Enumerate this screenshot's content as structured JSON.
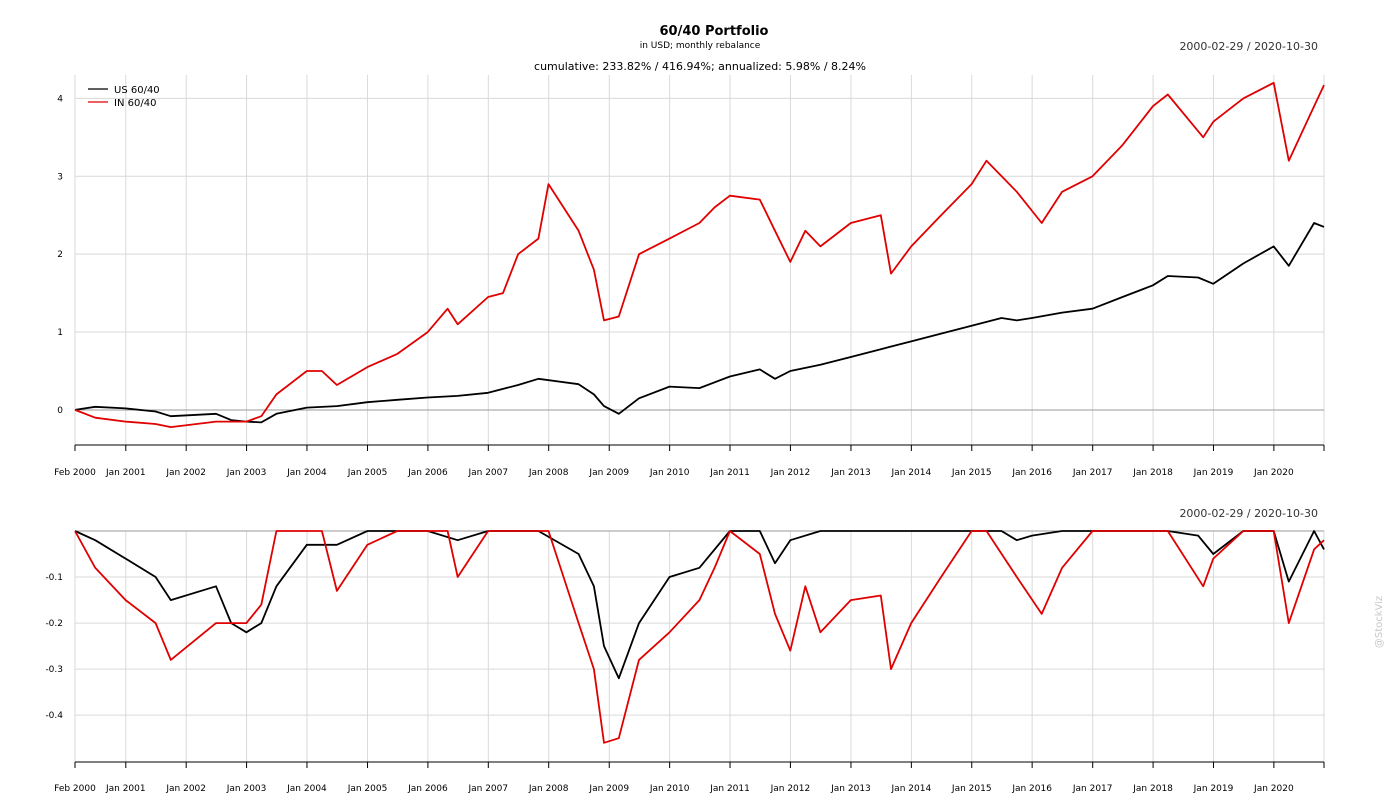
{
  "title": "60/40 Portfolio",
  "subtitle": "in USD; monthly rebalance",
  "stats": "cumulative: 233.82% / 416.94%; annualized: 5.98% / 8.24%",
  "date_range_top": "2000-02-29 / 2020-10-30",
  "date_range_bottom": "2000-02-29 / 2020-10-30",
  "watermark": "@StockViz",
  "colors": {
    "us": "#000000",
    "in": "#e00000"
  },
  "chart_data": [
    {
      "type": "line",
      "name": "cumulative returns",
      "x_range": [
        "2000-02-29",
        "2020-10-30"
      ],
      "ylim": [
        -0.45,
        4.3
      ],
      "y_ticks": [
        0,
        1,
        2,
        3,
        4
      ],
      "y_tick_labels": [
        "0",
        "1",
        "2",
        "3",
        "4"
      ],
      "x_tick_labels": [
        "Feb 2000",
        "Jan 2001",
        "Jan 2002",
        "Jan 2003",
        "Jan 2004",
        "Jan 2005",
        "Jan 2006",
        "Jan 2007",
        "Jan 2008",
        "Jan 2009",
        "Jan 2010",
        "Jan 2011",
        "Jan 2012",
        "Jan 2013",
        "Jan 2014",
        "Jan 2015",
        "Jan 2016",
        "Jan 2017",
        "Jan 2018",
        "Jan 2019",
        "Jan 2020"
      ],
      "legend_position": "top-left",
      "grid": true,
      "series": [
        {
          "name": "US 60/40",
          "color_key": "us",
          "x": [
            "2000-02-29",
            "2000-06-30",
            "2000-12-31",
            "2001-06-30",
            "2001-09-30",
            "2002-06-30",
            "2002-09-30",
            "2002-12-31",
            "2003-03-31",
            "2003-06-30",
            "2003-12-31",
            "2004-06-30",
            "2004-12-31",
            "2005-06-30",
            "2005-12-31",
            "2006-06-30",
            "2006-12-31",
            "2007-06-30",
            "2007-10-31",
            "2008-06-30",
            "2008-09-30",
            "2008-11-30",
            "2009-02-28",
            "2009-06-30",
            "2009-12-31",
            "2010-06-30",
            "2010-12-31",
            "2011-06-30",
            "2011-09-30",
            "2011-12-31",
            "2012-06-30",
            "2012-12-31",
            "2013-06-30",
            "2013-12-31",
            "2014-06-30",
            "2014-12-31",
            "2015-06-30",
            "2015-09-30",
            "2015-12-31",
            "2016-06-30",
            "2016-12-31",
            "2017-06-30",
            "2017-12-31",
            "2018-03-31",
            "2018-09-30",
            "2018-12-31",
            "2019-06-30",
            "2019-12-31",
            "2020-03-31",
            "2020-08-31",
            "2020-10-30"
          ],
          "y": [
            0.0,
            0.04,
            0.02,
            -0.02,
            -0.08,
            -0.05,
            -0.13,
            -0.15,
            -0.16,
            -0.05,
            0.03,
            0.05,
            0.1,
            0.13,
            0.16,
            0.18,
            0.22,
            0.32,
            0.4,
            0.33,
            0.2,
            0.05,
            -0.05,
            0.15,
            0.3,
            0.28,
            0.43,
            0.52,
            0.4,
            0.5,
            0.58,
            0.68,
            0.78,
            0.88,
            0.98,
            1.08,
            1.18,
            1.15,
            1.18,
            1.25,
            1.3,
            1.45,
            1.6,
            1.72,
            1.7,
            1.62,
            1.88,
            2.1,
            1.85,
            2.4,
            2.35
          ]
        },
        {
          "name": "IN 60/40",
          "color_key": "in",
          "x": [
            "2000-02-29",
            "2000-06-30",
            "2000-12-31",
            "2001-06-30",
            "2001-09-30",
            "2002-06-30",
            "2002-12-31",
            "2003-03-31",
            "2003-06-30",
            "2003-12-31",
            "2004-03-31",
            "2004-06-30",
            "2004-12-31",
            "2005-06-30",
            "2005-12-31",
            "2006-04-30",
            "2006-06-30",
            "2006-12-31",
            "2007-03-31",
            "2007-06-30",
            "2007-10-31",
            "2007-12-31",
            "2008-06-30",
            "2008-09-30",
            "2008-11-30",
            "2009-02-28",
            "2009-06-30",
            "2009-12-31",
            "2010-06-30",
            "2010-09-30",
            "2010-12-31",
            "2011-06-30",
            "2011-09-30",
            "2011-12-31",
            "2012-03-31",
            "2012-06-30",
            "2012-12-31",
            "2013-06-30",
            "2013-08-31",
            "2013-12-31",
            "2014-06-30",
            "2014-12-31",
            "2015-03-31",
            "2015-09-30",
            "2016-02-28",
            "2016-06-30",
            "2016-12-31",
            "2017-06-30",
            "2017-12-31",
            "2018-03-31",
            "2018-10-31",
            "2018-12-31",
            "2019-06-30",
            "2019-12-31",
            "2020-03-31",
            "2020-08-31",
            "2020-10-30"
          ],
          "y": [
            0.0,
            -0.1,
            -0.15,
            -0.18,
            -0.22,
            -0.15,
            -0.15,
            -0.08,
            0.2,
            0.5,
            0.5,
            0.32,
            0.55,
            0.72,
            1.0,
            1.3,
            1.1,
            1.45,
            1.5,
            2.0,
            2.2,
            2.9,
            2.3,
            1.8,
            1.15,
            1.2,
            2.0,
            2.2,
            2.4,
            2.6,
            2.75,
            2.7,
            2.3,
            1.9,
            2.3,
            2.1,
            2.4,
            2.5,
            1.75,
            2.1,
            2.5,
            2.9,
            3.2,
            2.8,
            2.4,
            2.8,
            3.0,
            3.4,
            3.9,
            4.05,
            3.5,
            3.7,
            4.0,
            4.2,
            3.2,
            3.9,
            4.17
          ]
        }
      ]
    },
    {
      "type": "line",
      "name": "drawdown",
      "x_range": [
        "2000-02-29",
        "2020-10-30"
      ],
      "ylim": [
        -0.48,
        0.0
      ],
      "y_ticks": [
        -0.1,
        -0.2,
        -0.3,
        -0.4
      ],
      "y_tick_labels": [
        "-0.1",
        "-0.2",
        "-0.3",
        "-0.4"
      ],
      "x_tick_labels": [
        "Feb 2000",
        "Jan 2001",
        "Jan 2002",
        "Jan 2003",
        "Jan 2004",
        "Jan 2005",
        "Jan 2006",
        "Jan 2007",
        "Jan 2008",
        "Jan 2009",
        "Jan 2010",
        "Jan 2011",
        "Jan 2012",
        "Jan 2013",
        "Jan 2014",
        "Jan 2015",
        "Jan 2016",
        "Jan 2017",
        "Jan 2018",
        "Jan 2019",
        "Jan 2020"
      ],
      "grid": true,
      "series": [
        {
          "name": "US 60/40",
          "color_key": "us",
          "x": [
            "2000-02-29",
            "2000-06-30",
            "2000-12-31",
            "2001-06-30",
            "2001-09-30",
            "2002-06-30",
            "2002-09-30",
            "2002-12-31",
            "2003-03-31",
            "2003-06-30",
            "2003-12-31",
            "2004-06-30",
            "2004-12-31",
            "2005-06-30",
            "2005-12-31",
            "2006-06-30",
            "2006-12-31",
            "2007-06-30",
            "2007-10-31",
            "2008-06-30",
            "2008-09-30",
            "2008-11-30",
            "2009-02-28",
            "2009-06-30",
            "2009-12-31",
            "2010-06-30",
            "2010-12-31",
            "2011-06-30",
            "2011-09-30",
            "2011-12-31",
            "2012-06-30",
            "2012-12-31",
            "2013-06-30",
            "2013-12-31",
            "2014-06-30",
            "2014-12-31",
            "2015-06-30",
            "2015-09-30",
            "2015-12-31",
            "2016-06-30",
            "2016-12-31",
            "2017-06-30",
            "2017-12-31",
            "2018-03-31",
            "2018-09-30",
            "2018-12-31",
            "2019-06-30",
            "2019-12-31",
            "2020-03-31",
            "2020-08-31",
            "2020-10-30"
          ],
          "y": [
            0.0,
            -0.02,
            -0.06,
            -0.1,
            -0.15,
            -0.12,
            -0.2,
            -0.22,
            -0.2,
            -0.12,
            -0.03,
            -0.03,
            0.0,
            0.0,
            0.0,
            -0.02,
            0.0,
            0.0,
            0.0,
            -0.05,
            -0.12,
            -0.25,
            -0.32,
            -0.2,
            -0.1,
            -0.08,
            0.0,
            0.0,
            -0.07,
            -0.02,
            0.0,
            0.0,
            0.0,
            0.0,
            0.0,
            0.0,
            0.0,
            -0.02,
            -0.01,
            0.0,
            0.0,
            0.0,
            0.0,
            0.0,
            -0.01,
            -0.05,
            0.0,
            0.0,
            -0.11,
            0.0,
            -0.04
          ]
        },
        {
          "name": "IN 60/40",
          "color_key": "in",
          "x": [
            "2000-02-29",
            "2000-06-30",
            "2000-12-31",
            "2001-06-30",
            "2001-09-30",
            "2002-06-30",
            "2002-12-31",
            "2003-03-31",
            "2003-06-30",
            "2003-12-31",
            "2004-03-31",
            "2004-06-30",
            "2004-12-31",
            "2005-06-30",
            "2005-12-31",
            "2006-04-30",
            "2006-06-30",
            "2006-12-31",
            "2007-03-31",
            "2007-06-30",
            "2007-10-31",
            "2007-12-31",
            "2008-06-30",
            "2008-09-30",
            "2008-11-30",
            "2009-02-28",
            "2009-06-30",
            "2009-12-31",
            "2010-06-30",
            "2010-09-30",
            "2010-12-31",
            "2011-06-30",
            "2011-09-30",
            "2011-12-31",
            "2012-03-31",
            "2012-06-30",
            "2012-12-31",
            "2013-06-30",
            "2013-08-31",
            "2013-12-31",
            "2014-06-30",
            "2014-12-31",
            "2015-03-31",
            "2015-09-30",
            "2016-02-28",
            "2016-06-30",
            "2016-12-31",
            "2017-06-30",
            "2017-12-31",
            "2018-03-31",
            "2018-10-31",
            "2018-12-31",
            "2019-06-30",
            "2019-12-31",
            "2020-03-31",
            "2020-08-31",
            "2020-10-30"
          ],
          "y": [
            0.0,
            -0.08,
            -0.15,
            -0.2,
            -0.28,
            -0.2,
            -0.2,
            -0.16,
            0.0,
            0.0,
            0.0,
            -0.13,
            -0.03,
            0.0,
            0.0,
            0.0,
            -0.1,
            0.0,
            0.0,
            0.0,
            0.0,
            0.0,
            -0.2,
            -0.3,
            -0.46,
            -0.45,
            -0.28,
            -0.22,
            -0.15,
            -0.08,
            0.0,
            -0.05,
            -0.18,
            -0.26,
            -0.12,
            -0.22,
            -0.15,
            -0.14,
            -0.3,
            -0.2,
            -0.1,
            0.0,
            0.0,
            -0.1,
            -0.18,
            -0.08,
            0.0,
            0.0,
            0.0,
            0.0,
            -0.12,
            -0.06,
            0.0,
            0.0,
            -0.2,
            -0.04,
            -0.02
          ]
        }
      ]
    }
  ]
}
